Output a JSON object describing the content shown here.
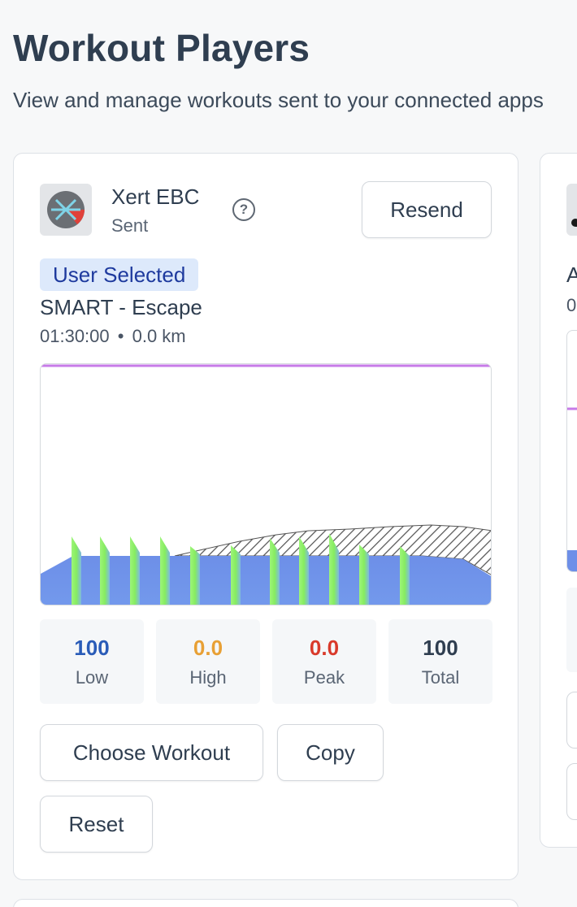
{
  "header": {
    "title": "Workout Players",
    "subtitle": "View and manage workouts sent to your connected apps"
  },
  "player_card": {
    "app_name": "Xert EBC",
    "status": "Sent",
    "logo_icon": "xert-logo-icon",
    "help_icon": "question-circle-icon",
    "help_glyph": "?",
    "resend_label": "Resend",
    "badge": "User Selected",
    "workout_name": "SMART - Escape",
    "duration": "01:30:00",
    "separator": "•",
    "distance": "0.0 km",
    "stats": [
      {
        "value": "100",
        "label": "Low",
        "color": "#2a5cb8"
      },
      {
        "value": "0.0",
        "label": "High",
        "color": "#e8a035"
      },
      {
        "value": "0.0",
        "label": "Peak",
        "color": "#d93a2b"
      },
      {
        "value": "100",
        "label": "Total",
        "color": "#2f3e50"
      }
    ],
    "choose_workout_label": "Choose Workout",
    "copy_label": "Copy",
    "reset_label": "Reset",
    "chart_colors": {
      "base_fill": "#6f95e6",
      "interval_fill": "#8ef06a",
      "hatch": "#555555",
      "line": "#c77be8"
    }
  },
  "second_card": {
    "title_partial": "A",
    "subtitle_partial": "0",
    "logo_icon": "app-logo-icon"
  }
}
